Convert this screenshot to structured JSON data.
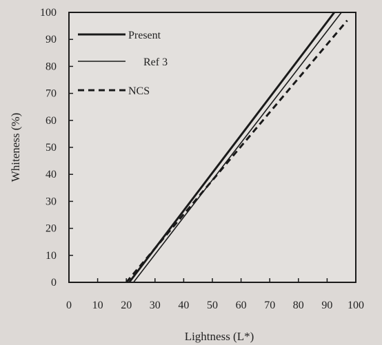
{
  "chart_data": {
    "type": "line",
    "xlabel": "Lightness (L*)",
    "ylabel": "Whiteness  (%)",
    "xlim": [
      0,
      100
    ],
    "ylim": [
      0,
      100
    ],
    "xticks": [
      0,
      10,
      20,
      30,
      40,
      50,
      60,
      70,
      80,
      90,
      100
    ],
    "yticks": [
      0,
      10,
      20,
      30,
      40,
      50,
      60,
      70,
      80,
      90,
      100
    ],
    "legend_position": "top-left",
    "series": [
      {
        "name": "Present",
        "style": "solid-thick",
        "color": "#1a1a1a",
        "x": [
          21.0,
          92.5
        ],
        "y": [
          0,
          100
        ]
      },
      {
        "name": "Ref 3",
        "style": "solid-thin",
        "color": "#1a1a1a",
        "x": [
          22.5,
          95.0
        ],
        "y": [
          0,
          100
        ]
      },
      {
        "name": "NCS",
        "style": "dashed",
        "color": "#1a1a1a",
        "x": [
          20.0,
          97.0
        ],
        "y": [
          0,
          97
        ]
      }
    ]
  }
}
